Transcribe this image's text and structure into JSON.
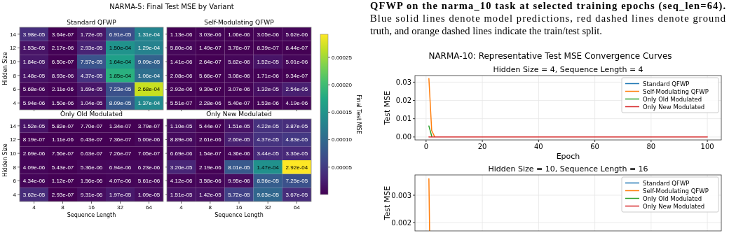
{
  "chart_data": [
    {
      "type": "heatmap",
      "title": "NARMA-5: Final Test MSE by Variant",
      "subtitle": "Standard QFWP",
      "ylabel": "Hidden Size",
      "categories": [
        "4",
        "8",
        "16",
        "32",
        "64"
      ],
      "y_categories": [
        "14",
        "12",
        "10",
        "8",
        "6",
        "4"
      ],
      "tick_labels": "y",
      "cells": [
        [
          3.98e-05,
          3.64e-07,
          1.72e-05,
          6.91e-05,
          0.000131
        ],
        [
          1.53e-05,
          2.17e-06,
          2.93e-05,
          0.00015,
          0.000129
        ],
        [
          1.84e-05,
          6.5e-07,
          7.57e-05,
          0.000164,
          9.09e-05
        ],
        [
          1.48e-05,
          8.93e-06,
          4.37e-05,
          0.000185,
          0.000106
        ],
        [
          5.68e-06,
          2.11e-06,
          1.69e-05,
          7.23e-05,
          0.000268
        ],
        [
          5.94e-06,
          1.5e-06,
          1.04e-05,
          8.09e-05,
          0.000137
        ]
      ],
      "cell_labels": [
        [
          "3.98e-05",
          "3.64e-07",
          "1.72e-05",
          "6.91e-05",
          "1.31e-04"
        ],
        [
          "1.53e-05",
          "2.17e-06",
          "2.93e-05",
          "1.50e-04",
          "1.29e-04"
        ],
        [
          "1.84e-05",
          "6.50e-07",
          "7.57e-05",
          "1.64e-04",
          "9.09e-05"
        ],
        [
          "1.48e-05",
          "8.93e-06",
          "4.37e-05",
          "1.85e-04",
          "1.06e-04"
        ],
        [
          "5.68e-06",
          "2.11e-06",
          "1.69e-05",
          "7.23e-05",
          "2.68e-04"
        ],
        [
          "5.94e-06",
          "1.50e-06",
          "1.04e-05",
          "8.09e-05",
          "1.37e-04"
        ]
      ]
    },
    {
      "type": "heatmap",
      "subtitle": "Self-Modulating QFWP",
      "categories": [
        "4",
        "8",
        "16",
        "32",
        "64"
      ],
      "y_categories": [
        "14",
        "12",
        "10",
        "8",
        "6",
        "4"
      ],
      "clim": [
        1.12e-07,
        0.000292
      ],
      "tick_labels": false,
      "clabel": "Final Test MSE",
      "cticks": [
        {
          "value": 5e-05,
          "label": "0.00005"
        },
        {
          "value": 0.0001,
          "label": "0.00010"
        },
        {
          "value": 0.00015,
          "label": "0.00015"
        },
        {
          "value": 0.0002,
          "label": "0.00020"
        },
        {
          "value": 0.00025,
          "label": "0.00025"
        }
      ],
      "cells": [
        [
          1.13e-06,
          3.03e-06,
          1.06e-06,
          3.05e-06,
          5.62e-06
        ],
        [
          5.8e-06,
          1.49e-07,
          3.78e-07,
          8.39e-07,
          8.44e-07
        ],
        [
          1.41e-06,
          2.64e-07,
          5.62e-06,
          1.52e-05,
          5.01e-06
        ],
        [
          2.08e-06,
          5.66e-07,
          3.08e-06,
          1.71e-06,
          9.34e-07
        ],
        [
          2.92e-06,
          9.3e-07,
          3.07e-06,
          1.32e-05,
          2.54e-05
        ],
        [
          5.51e-07,
          2.28e-06,
          5.4e-07,
          1.53e-06,
          4.19e-06
        ]
      ],
      "cell_labels": [
        [
          "1.13e-06",
          "3.03e-06",
          "1.06e-06",
          "3.05e-06",
          "5.62e-06"
        ],
        [
          "5.80e-06",
          "1.49e-07",
          "3.78e-07",
          "8.39e-07",
          "8.44e-07"
        ],
        [
          "1.41e-06",
          "2.64e-07",
          "5.62e-06",
          "1.52e-05",
          "5.01e-06"
        ],
        [
          "2.08e-06",
          "5.66e-07",
          "3.08e-06",
          "1.71e-06",
          "9.34e-07"
        ],
        [
          "2.92e-06",
          "9.30e-07",
          "3.07e-06",
          "1.32e-05",
          "2.54e-05"
        ],
        [
          "5.51e-07",
          "2.28e-06",
          "5.40e-07",
          "1.53e-06",
          "4.19e-06"
        ]
      ]
    },
    {
      "type": "heatmap",
      "subtitle": "Only Old Modulated",
      "xlabel": "Sequence Length",
      "ylabel": "Hidden Size",
      "categories": [
        "4",
        "8",
        "16",
        "32",
        "64"
      ],
      "y_categories": [
        "14",
        "12",
        "10",
        "8",
        "6",
        "4"
      ],
      "cells": [
        [
          1.52e-05,
          5.82e-07,
          7.7e-07,
          1.34e-07,
          3.79e-07
        ],
        [
          8.19e-07,
          1.11e-06,
          6.43e-07,
          7.36e-07,
          5e-06
        ],
        [
          2.69e-06,
          7.56e-07,
          6.63e-07,
          7.26e-07,
          7.05e-07
        ],
        [
          4.09e-06,
          5.43e-07,
          5.36e-06,
          6.94e-06,
          6.23e-06
        ],
        [
          4.34e-06,
          1.12e-07,
          1.56e-06,
          4.07e-06,
          5.61e-06
        ],
        [
          3.62e-05,
          2.93e-07,
          9.31e-06,
          1.97e-05,
          1.09e-05
        ]
      ],
      "cell_labels": [
        [
          "1.52e-05",
          "5.82e-07",
          "7.70e-07",
          "1.34e-07",
          "3.79e-07"
        ],
        [
          "8.19e-07",
          "1.11e-06",
          "6.43e-07",
          "7.36e-07",
          "5.00e-06"
        ],
        [
          "2.69e-06",
          "7.56e-07",
          "6.63e-07",
          "7.26e-07",
          "7.05e-07"
        ],
        [
          "4.09e-06",
          "5.43e-07",
          "5.36e-06",
          "6.94e-06",
          "6.23e-06"
        ],
        [
          "4.34e-06",
          "1.12e-07",
          "1.56e-06",
          "4.07e-06",
          "5.61e-06"
        ],
        [
          "3.62e-05",
          "2.93e-07",
          "9.31e-06",
          "1.97e-05",
          "1.09e-05"
        ]
      ]
    },
    {
      "type": "heatmap",
      "subtitle": "Only New Modulated",
      "xlabel": "Sequence Length",
      "categories": [
        "4",
        "8",
        "16",
        "32",
        "64"
      ],
      "y_categories": [
        "14",
        "12",
        "10",
        "8",
        "6",
        "4"
      ],
      "tick_labels": "x",
      "cells": [
        [
          1.1e-05,
          5.44e-07,
          1.51e-05,
          4.22e-05,
          3.87e-05
        ],
        [
          8.89e-06,
          2.61e-06,
          2.6e-05,
          4.37e-05,
          4.83e-05
        ],
        [
          6.69e-06,
          1.54e-07,
          4.36e-06,
          3.44e-05,
          3.36e-05
        ],
        [
          3.2e-05,
          2.19e-06,
          8.01e-05,
          0.000147,
          0.000292
        ],
        [
          4.12e-06,
          3.58e-06,
          9.95e-06,
          8.56e-05,
          7.25e-05
        ],
        [
          1.51e-05,
          1.42e-05,
          5.72e-05,
          9.63e-05,
          3.67e-05
        ]
      ],
      "cell_labels": [
        [
          "1.10e-05",
          "5.44e-07",
          "1.51e-05",
          "4.22e-05",
          "3.87e-05"
        ],
        [
          "8.89e-06",
          "2.61e-06",
          "2.60e-05",
          "4.37e-05",
          "4.83e-05"
        ],
        [
          "6.69e-06",
          "1.54e-07",
          "4.36e-06",
          "3.44e-05",
          "3.36e-05"
        ],
        [
          "3.20e-05",
          "2.19e-06",
          "8.01e-05",
          "1.47e-04",
          "2.92e-04"
        ],
        [
          "4.12e-06",
          "3.58e-06",
          "9.95e-06",
          "8.56e-05",
          "7.25e-05"
        ],
        [
          "1.51e-05",
          "1.42e-05",
          "5.72e-05",
          "9.63e-05",
          "3.67e-05"
        ]
      ]
    },
    {
      "type": "other",
      "annotations": [
        "QFWP on the narma_10 task at selected training epochs (seq_len=64).",
        "Blue solid lines denote model predictions, red dashed lines denote ground",
        "truth, and orange dashed lines indicate the train/test split."
      ]
    },
    {
      "type": "line",
      "title": "NARMA-10: Representative Test MSE Convergence Curves",
      "subtitle": "Hidden Size = 4, Sequence Length = 4",
      "xlabel": "Epoch",
      "ylabel": "Test MSE",
      "xlim": [
        -3.95,
        104.95
      ],
      "xticks": [
        0,
        20,
        40,
        60,
        80,
        100
      ],
      "ylim": [
        -0.0016,
        0.0336
      ],
      "yticks": [
        {
          "value": 0,
          "label": "0.00"
        },
        {
          "value": 0.01,
          "label": "0.01"
        },
        {
          "value": 0.02,
          "label": "0.02"
        },
        {
          "value": 0.03,
          "label": "0.03"
        }
      ],
      "grid": true,
      "legend": "top right",
      "series": [
        {
          "name": "Standard QFWP",
          "color": "#1f77b4"
        },
        {
          "name": "Self-Modulating QFWP",
          "color": "#ff7f0e",
          "x": [
            1,
            2,
            3
          ],
          "values": [
            0.032,
            0.0035,
            0.0003
          ]
        },
        {
          "name": "Only Old Modulated",
          "color": "#2ca02c",
          "x": [
            1,
            2
          ],
          "values": [
            0.006,
            0.0005
          ]
        },
        {
          "name": "Only New Modulated",
          "color": "#d62728",
          "x": [
            1,
            100
          ],
          "values": [
            0,
            0
          ]
        }
      ]
    },
    {
      "type": "line",
      "subtitle": "Hidden Size = 10, Sequence Length = 16",
      "ylabel": "Test MSE",
      "xlim": [
        -3.95,
        104.95
      ],
      "xticks": [
        0,
        20,
        40,
        60,
        80,
        100
      ],
      "ylim": [
        0.0017,
        0.00374
      ],
      "yticks": [
        0.002,
        0.003
      ],
      "grid": true,
      "legend": "top right",
      "tick_labels": "y",
      "series": [
        {
          "name": "Standard QFWP",
          "color": "#1f77b4"
        },
        {
          "name": "Self-Modulating QFWP",
          "color": "#ff7f0e",
          "x": [
            1,
            1.25
          ],
          "values": [
            0.0036,
            0.0017
          ]
        },
        {
          "name": "Only Old Modulated",
          "color": "#2ca02c"
        },
        {
          "name": "Only New Modulated",
          "color": "#d62728"
        }
      ]
    }
  ]
}
